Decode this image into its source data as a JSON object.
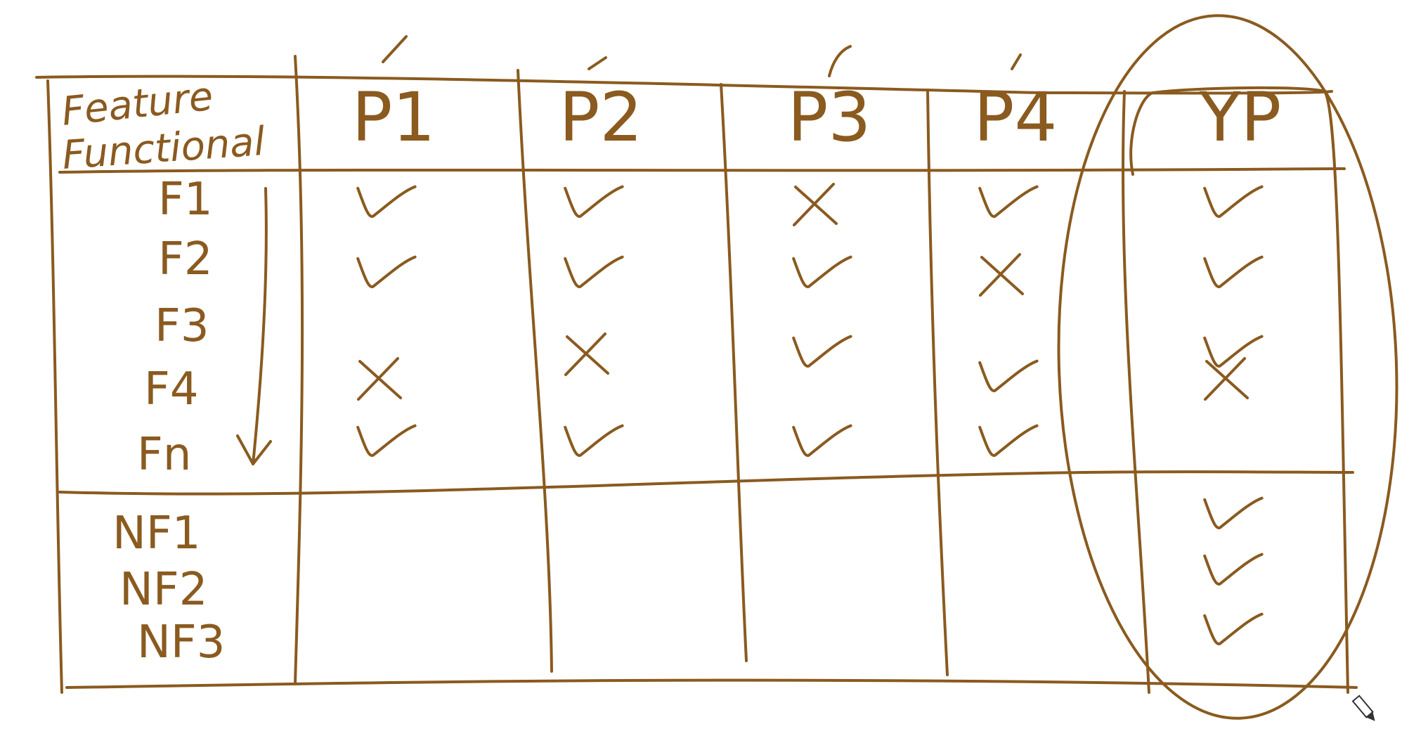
{
  "ink_color": "#8a5a1f",
  "header": {
    "corner_label": "Feature Functional",
    "columns": [
      "P1",
      "P2",
      "P3",
      "P4",
      "YP"
    ]
  },
  "functional_rows": {
    "labels": [
      "F1",
      "F2",
      "F3",
      "F4",
      "Fn"
    ],
    "marks": [
      [
        "check",
        "check",
        "cross",
        "check",
        "check"
      ],
      [
        "check",
        "check",
        "check",
        "cross",
        "check"
      ],
      [
        "",
        "cross",
        "check",
        "",
        "check"
      ],
      [
        "cross",
        "",
        "",
        "check",
        "cross"
      ],
      [
        "check",
        "check",
        "check",
        "check",
        ""
      ]
    ]
  },
  "non_functional_rows": {
    "labels": [
      "NF1",
      "NF2",
      "NF3"
    ],
    "marks": [
      [
        "",
        "",
        "",
        "",
        "check"
      ],
      [
        "",
        "",
        "",
        "",
        "check"
      ],
      [
        "",
        "",
        "",
        "",
        "check"
      ]
    ]
  },
  "highlight": {
    "column": "YP",
    "shape": "circled"
  },
  "icons": {
    "check": "check-mark-icon",
    "cross": "cross-mark-icon",
    "arrow": "down-arrow-icon",
    "pen": "pen-cursor-icon"
  }
}
